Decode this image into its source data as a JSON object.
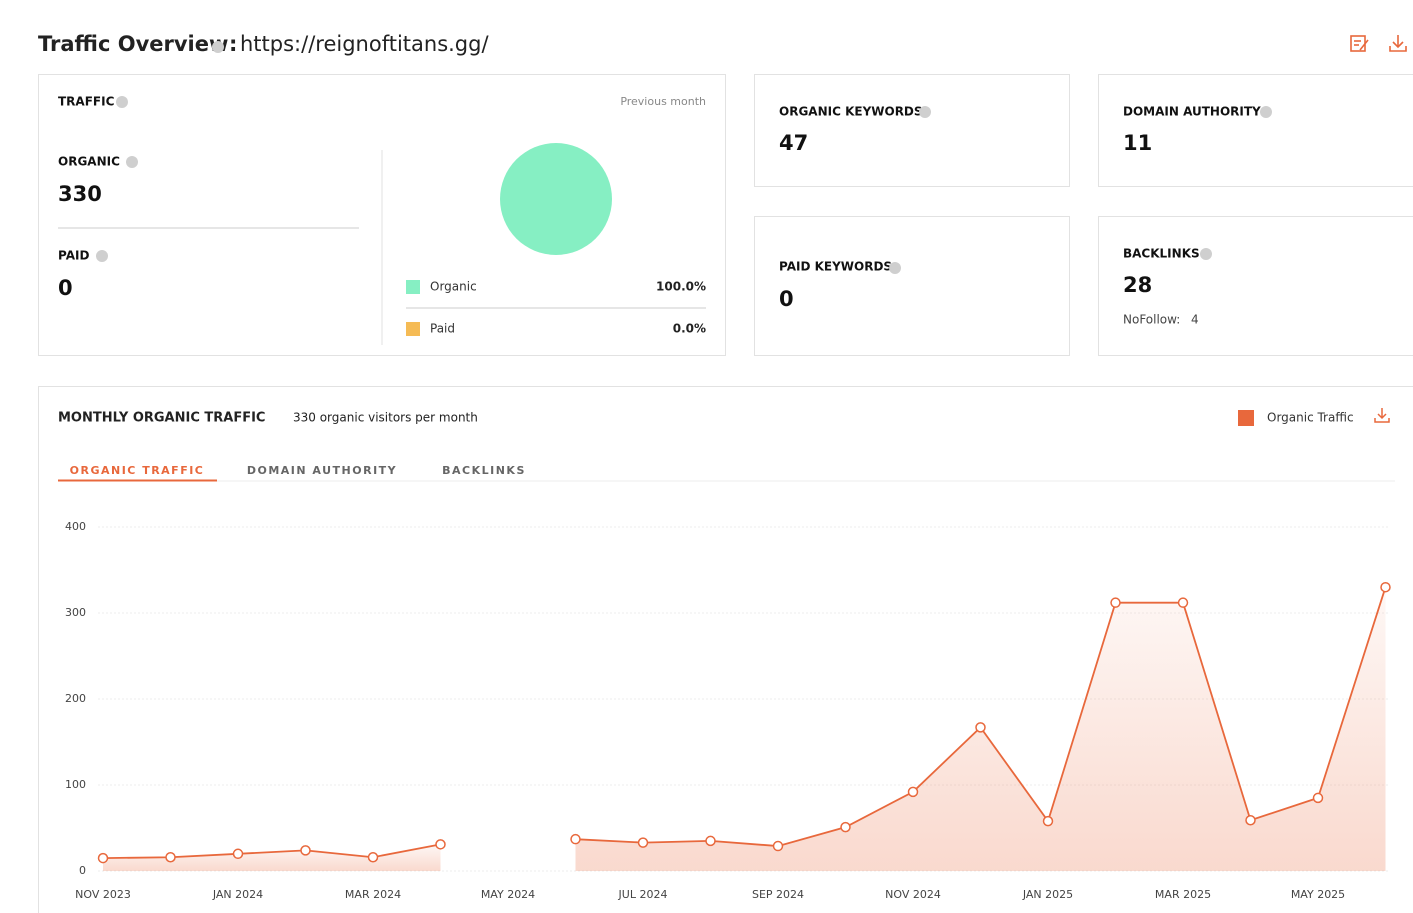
{
  "header": {
    "title": "Traffic Overview",
    "separator": ":",
    "url": "https://reignoftitans.gg/"
  },
  "traffic": {
    "label": "TRAFFIC",
    "period": "Previous month",
    "organic_label": "ORGANIC",
    "organic": 330,
    "paid_label": "PAID",
    "paid": 0
  },
  "metrics": {
    "organic_keywords_label": "ORGANIC KEYWORDS",
    "organic_keywords": 47,
    "domain_authority_label": "DOMAIN AUTHORITY",
    "domain_authority": 11,
    "paid_keywords_label": "PAID KEYWORDS",
    "paid_keywords": 0,
    "backlinks_label": "BACKLINKS",
    "backlinks": 28,
    "nofollow_label": "NoFollow:",
    "nofollow": 4
  },
  "monthly": {
    "title": "MONTHLY ORGANIC TRAFFIC",
    "subtitle": "330 organic visitors per month",
    "tabs": [
      "ORGANIC TRAFFIC",
      "DOMAIN AUTHORITY",
      "BACKLINKS"
    ]
  },
  "chart_data": [
    {
      "type": "pie",
      "categories": [
        "Organic",
        "Paid"
      ],
      "values": [
        100,
        0
      ],
      "value_labels": [
        "100.0%",
        "0.0%"
      ],
      "colors": [
        "#86efc3",
        "#f5bb55"
      ]
    },
    {
      "type": "line",
      "categories": [
        "NOV 2023",
        null,
        "JAN 2024",
        null,
        "MAR 2024",
        null,
        "MAY 2024",
        null,
        "JUL 2024",
        null,
        "SEP 2024",
        null,
        "NOV 2024",
        null,
        "JAN 2025",
        null,
        "MAR 2025",
        null,
        "MAY 2025",
        null
      ],
      "series": [
        {
          "name": "Organic Traffic",
          "color": "#e8683c",
          "values": [
            15,
            16,
            20,
            24,
            16,
            31,
            null,
            37,
            33,
            35,
            29,
            51,
            92,
            167,
            58,
            312,
            312,
            59,
            85,
            330
          ]
        }
      ],
      "ylim": [
        0,
        400
      ],
      "yticks": [
        0,
        100,
        200,
        300,
        400
      ],
      "grid": true
    }
  ]
}
